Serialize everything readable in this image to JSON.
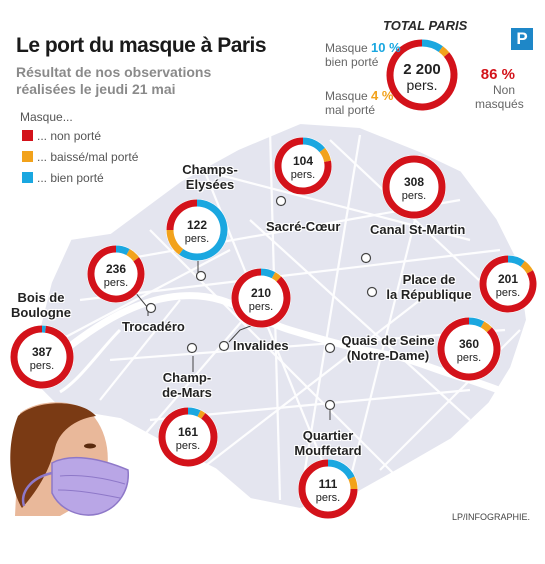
{
  "title": "Le port du masque à Paris",
  "subtitle": "Résultat de nos observations réalisées le jeudi 21 mai",
  "legend": {
    "title": "Masque...",
    "items": [
      {
        "label": "... non porté",
        "color": "#d3121a"
      },
      {
        "label": "... baissé/mal porté",
        "color": "#f2a21b"
      },
      {
        "label": "... bien porté",
        "color": "#1aa7e0"
      }
    ]
  },
  "total": {
    "title": "TOTAL PARIS",
    "count": "2 200",
    "unit": "pers.",
    "bien_label": "Masque",
    "bien_label2": "bien porté",
    "bien_pct": "10 %",
    "mal_label": "Masque",
    "mal_label2": "mal porté",
    "mal_pct": "4 %",
    "non_pct": "86 %",
    "non_label": "Non",
    "non_label2": "masqués"
  },
  "logo_letter": "P",
  "colors": {
    "red": "#d3121a",
    "orange": "#f2a21b",
    "blue": "#1aa7e0",
    "map_fill": "#e4e5ef",
    "map_border": "#ffffff",
    "street": "#ffffff",
    "river": "#ffffff"
  },
  "locations": [
    {
      "id": "sacre-coeur",
      "name": [
        "Sacré-Cœur"
      ],
      "count": "104",
      "unit": "pers.",
      "non": 0.78,
      "mal": 0.08,
      "bien": 0.14
    },
    {
      "id": "canal-st-martin",
      "name": [
        "Canal St-Martin"
      ],
      "count": "308",
      "unit": "pers.",
      "non": 1.0,
      "mal": 0.0,
      "bien": 0.0
    },
    {
      "id": "champs-elysees",
      "name": [
        "Champs-",
        "Elysées"
      ],
      "count": "122",
      "unit": "pers.",
      "non": 0.25,
      "mal": 0.15,
      "bien": 0.6
    },
    {
      "id": "place-republique",
      "name": [
        "Place de",
        "la République"
      ],
      "count": "201",
      "unit": "pers.",
      "non": 0.83,
      "mal": 0.07,
      "bien": 0.1
    },
    {
      "id": "trocadero",
      "name": [
        "Trocadéro"
      ],
      "count": "236",
      "unit": "pers.",
      "non": 0.85,
      "mal": 0.07,
      "bien": 0.08
    },
    {
      "id": "invalides",
      "name": [
        "Invalides"
      ],
      "count": "210",
      "unit": "pers.",
      "non": 0.88,
      "mal": 0.04,
      "bien": 0.08
    },
    {
      "id": "bois-boulogne",
      "name": [
        "Bois de",
        "Boulogne"
      ],
      "count": "387",
      "unit": "pers.",
      "non": 0.98,
      "mal": 0.0,
      "bien": 0.02
    },
    {
      "id": "quais-seine",
      "name": [
        "Quais de Seine",
        "(Notre-Dame)"
      ],
      "count": "360",
      "unit": "pers.",
      "non": 0.87,
      "mal": 0.05,
      "bien": 0.08
    },
    {
      "id": "champ-de-mars",
      "name": [
        "Champ-",
        "de-Mars"
      ],
      "count": "161",
      "unit": "pers.",
      "non": 0.9,
      "mal": 0.03,
      "bien": 0.07
    },
    {
      "id": "mouffetard",
      "name": [
        "Quartier",
        "Mouffetard"
      ],
      "count": "111",
      "unit": "pers.",
      "non": 0.75,
      "mal": 0.07,
      "bien": 0.18
    }
  ],
  "credit": "LP/INFOGRAPHIE."
}
